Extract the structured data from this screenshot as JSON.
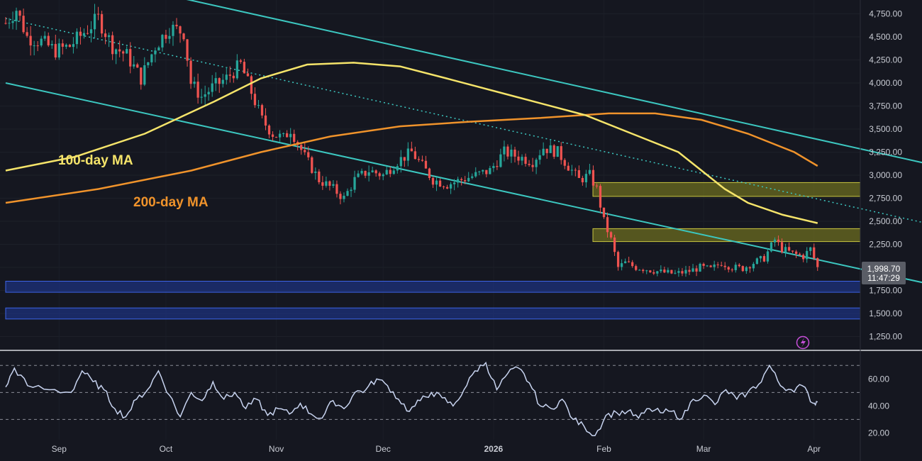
{
  "chart_data": {
    "type": "candlestick",
    "price_panel": {
      "y_ticks": [
        1250,
        1500,
        1750,
        2000,
        2250,
        2500,
        2750,
        3000,
        3250,
        3500,
        3750,
        4000,
        4250,
        4500,
        4750
      ],
      "y_tick_labels": [
        "1,250.00",
        "1,500.00",
        "1,750.00",
        "2,000.00",
        "2,250.00",
        "2,500.00",
        "2,750.00",
        "3,000.00",
        "3,250.00",
        "3,500.00",
        "3,750.00",
        "4,000.00",
        "4,250.00",
        "4,500.00",
        "4,750.00"
      ],
      "ylim": [
        1100,
        4900
      ],
      "current_price": "1,998.70",
      "countdown": "11:47:29",
      "current_value": 1998.7,
      "ma_labels": [
        {
          "text": "100-day MA",
          "color": "#f5e46a"
        },
        {
          "text": "200-day MA",
          "color": "#f0932b"
        }
      ],
      "resistance_zones": [
        [
          2770,
          2920
        ],
        [
          2280,
          2420
        ]
      ],
      "support_zones": [
        [
          1730,
          1850
        ],
        [
          1440,
          1560
        ]
      ],
      "ma100": [
        [
          0,
          3050
        ],
        [
          30,
          3200
        ],
        [
          60,
          3450
        ],
        [
          90,
          3800
        ],
        [
          110,
          4050
        ],
        [
          130,
          4200
        ],
        [
          150,
          4220
        ],
        [
          170,
          4180
        ],
        [
          190,
          4050
        ],
        [
          220,
          3850
        ],
        [
          250,
          3650
        ],
        [
          270,
          3450
        ],
        [
          290,
          3250
        ],
        [
          300,
          3050
        ],
        [
          310,
          2850
        ],
        [
          320,
          2700
        ],
        [
          335,
          2570
        ],
        [
          350,
          2480
        ]
      ],
      "ma200": [
        [
          0,
          2700
        ],
        [
          40,
          2850
        ],
        [
          80,
          3050
        ],
        [
          110,
          3250
        ],
        [
          140,
          3420
        ],
        [
          170,
          3530
        ],
        [
          200,
          3580
        ],
        [
          230,
          3620
        ],
        [
          260,
          3670
        ],
        [
          280,
          3670
        ],
        [
          300,
          3600
        ],
        [
          320,
          3450
        ],
        [
          340,
          3250
        ],
        [
          350,
          3100
        ]
      ],
      "channel_upper": [
        [
          40,
          5000
        ],
        [
          355,
          2300
        ]
      ],
      "channel_lower": [
        [
          0,
          4000
        ],
        [
          345,
          1100
        ]
      ],
      "channel_mid": [
        [
          0,
          4700
        ],
        [
          355,
          1650
        ]
      ]
    },
    "rsi_panel": {
      "y_ticks": [
        20,
        40,
        60
      ],
      "y_tick_labels": [
        "20.00",
        "40.00",
        "60.00"
      ],
      "ylim": [
        15,
        78
      ],
      "levels": [
        70,
        50,
        30
      ],
      "keypoints": [
        [
          0,
          54
        ],
        [
          4,
          68
        ],
        [
          10,
          55
        ],
        [
          20,
          52
        ],
        [
          30,
          50
        ],
        [
          35,
          66
        ],
        [
          40,
          58
        ],
        [
          45,
          52
        ],
        [
          50,
          38
        ],
        [
          55,
          32
        ],
        [
          60,
          45
        ],
        [
          65,
          52
        ],
        [
          70,
          66
        ],
        [
          75,
          48
        ],
        [
          80,
          32
        ],
        [
          85,
          50
        ],
        [
          90,
          44
        ],
        [
          95,
          58
        ],
        [
          100,
          45
        ],
        [
          105,
          50
        ],
        [
          110,
          38
        ],
        [
          115,
          45
        ],
        [
          120,
          33
        ],
        [
          125,
          38
        ],
        [
          130,
          34
        ],
        [
          135,
          42
        ],
        [
          140,
          34
        ],
        [
          145,
          31
        ],
        [
          150,
          44
        ],
        [
          155,
          38
        ],
        [
          160,
          50
        ],
        [
          165,
          52
        ],
        [
          170,
          60
        ],
        [
          175,
          55
        ],
        [
          180,
          45
        ],
        [
          185,
          36
        ],
        [
          190,
          44
        ],
        [
          195,
          50
        ],
        [
          200,
          46
        ],
        [
          205,
          40
        ],
        [
          210,
          52
        ],
        [
          215,
          66
        ],
        [
          220,
          72
        ],
        [
          225,
          52
        ],
        [
          230,
          64
        ],
        [
          235,
          68
        ],
        [
          240,
          57
        ],
        [
          245,
          40
        ],
        [
          250,
          38
        ],
        [
          255,
          45
        ],
        [
          260,
          30
        ],
        [
          265,
          25
        ],
        [
          270,
          18
        ],
        [
          275,
          33
        ],
        [
          280,
          35
        ],
        [
          285,
          36
        ],
        [
          290,
          31
        ],
        [
          295,
          38
        ],
        [
          300,
          35
        ],
        [
          305,
          36
        ],
        [
          310,
          31
        ],
        [
          315,
          45
        ],
        [
          320,
          48
        ],
        [
          325,
          41
        ],
        [
          330,
          52
        ],
        [
          335,
          45
        ],
        [
          340,
          50
        ],
        [
          345,
          56
        ],
        [
          350,
          70
        ],
        [
          355,
          55
        ],
        [
          360,
          52
        ],
        [
          365,
          55
        ],
        [
          370,
          42
        ],
        [
          372,
          43
        ]
      ]
    },
    "x_ticks": [
      {
        "label": "Sep",
        "x": 15
      },
      {
        "label": "Oct",
        "x": 45
      },
      {
        "label": "Nov",
        "x": 76
      },
      {
        "label": "Dec",
        "x": 106
      },
      {
        "label": "2026",
        "x": 137,
        "bold": true
      },
      {
        "label": "Feb",
        "x": 168
      },
      {
        "label": "Mar",
        "x": 196
      },
      {
        "label": "Apr",
        "x": 227
      }
    ],
    "xlim": [
      0,
      240
    ],
    "price_keypoints": [
      [
        0,
        4650
      ],
      [
        3,
        4800
      ],
      [
        6,
        4500
      ],
      [
        10,
        4450
      ],
      [
        14,
        4350
      ],
      [
        18,
        4400
      ],
      [
        22,
        4550
      ],
      [
        26,
        4700
      ],
      [
        30,
        4400
      ],
      [
        34,
        4300
      ],
      [
        38,
        4050
      ],
      [
        42,
        4400
      ],
      [
        46,
        4600
      ],
      [
        50,
        4550
      ],
      [
        52,
        4000
      ],
      [
        55,
        3850
      ],
      [
        58,
        3950
      ],
      [
        62,
        4050
      ],
      [
        66,
        4200
      ],
      [
        69,
        3900
      ],
      [
        72,
        3600
      ],
      [
        75,
        3450
      ],
      [
        78,
        3400
      ],
      [
        80,
        3500
      ],
      [
        84,
        3200
      ],
      [
        88,
        2950
      ],
      [
        92,
        2850
      ],
      [
        95,
        2750
      ],
      [
        98,
        2950
      ],
      [
        102,
        3050
      ],
      [
        106,
        3000
      ],
      [
        110,
        3150
      ],
      [
        114,
        3250
      ],
      [
        117,
        3100
      ],
      [
        120,
        2950
      ],
      [
        124,
        2900
      ],
      [
        128,
        2950
      ],
      [
        132,
        3000
      ],
      [
        136,
        3050
      ],
      [
        140,
        3250
      ],
      [
        144,
        3200
      ],
      [
        148,
        3150
      ],
      [
        151,
        3300
      ],
      [
        155,
        3250
      ],
      [
        158,
        3100
      ],
      [
        161,
        2950
      ],
      [
        164,
        3000
      ],
      [
        166,
        2850
      ],
      [
        168,
        2500
      ],
      [
        170,
        2300
      ],
      [
        172,
        2000
      ],
      [
        174,
        2050
      ],
      [
        177,
        2000
      ],
      [
        180,
        1980
      ],
      [
        184,
        1950
      ],
      [
        188,
        1930
      ],
      [
        192,
        1960
      ],
      [
        195,
        2000
      ],
      [
        198,
        1980
      ],
      [
        201,
        2050
      ],
      [
        204,
        2000
      ],
      [
        207,
        1990
      ],
      [
        210,
        2050
      ],
      [
        213,
        2100
      ],
      [
        216,
        2300
      ],
      [
        218,
        2200
      ],
      [
        221,
        2150
      ],
      [
        224,
        2120
      ],
      [
        226,
        2200
      ],
      [
        228,
        1998
      ]
    ]
  }
}
